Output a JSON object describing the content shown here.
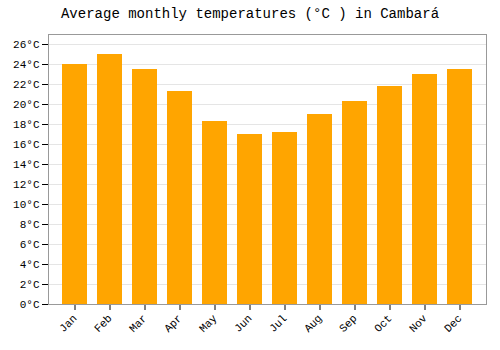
{
  "chart_data": {
    "type": "bar",
    "title": "Average monthly temperatures (°C ) in Cambará",
    "categories": [
      "Jan",
      "Feb",
      "Mar",
      "Apr",
      "May",
      "Jun",
      "Jul",
      "Aug",
      "Sep",
      "Oct",
      "Nov",
      "Dec"
    ],
    "values": [
      24.0,
      25.0,
      23.5,
      21.3,
      18.3,
      17.0,
      17.2,
      19.0,
      20.3,
      21.8,
      23.0,
      23.5
    ],
    "color": "#FFA500",
    "ylim": [
      0,
      27
    ],
    "yticks": [
      {
        "value": 0,
        "label": "0°C"
      },
      {
        "value": 2,
        "label": "2°C"
      },
      {
        "value": 4,
        "label": "4°C"
      },
      {
        "value": 6,
        "label": "6°C"
      },
      {
        "value": 8,
        "label": "8°C"
      },
      {
        "value": 10,
        "label": "10°C"
      },
      {
        "value": 12,
        "label": "12°C"
      },
      {
        "value": 14,
        "label": "14°C"
      },
      {
        "value": 16,
        "label": "16°C"
      },
      {
        "value": 18,
        "label": "18°C"
      },
      {
        "value": 20,
        "label": "20°C"
      },
      {
        "value": 22,
        "label": "22°C"
      },
      {
        "value": 24,
        "label": "24°C"
      },
      {
        "value": 26,
        "label": "26°C"
      }
    ],
    "grid": true
  }
}
